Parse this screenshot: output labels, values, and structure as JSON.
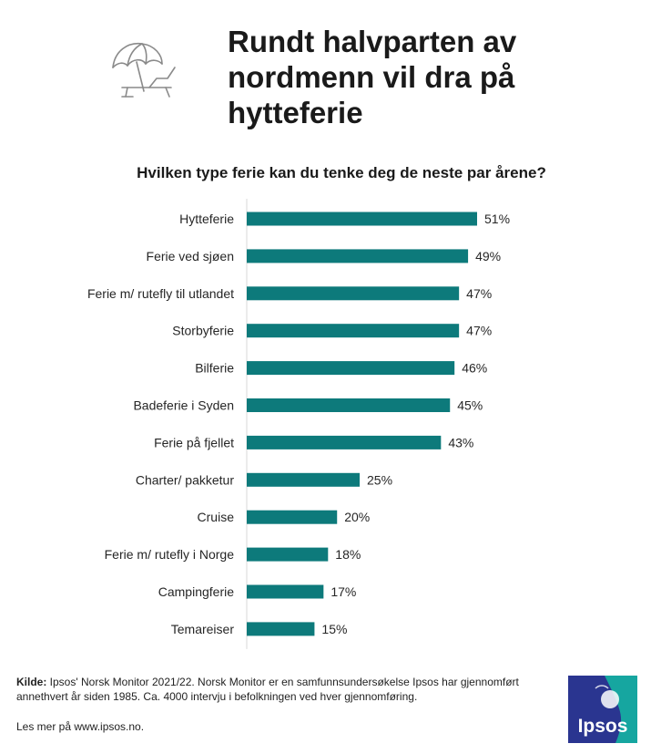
{
  "header": {
    "title": "Rundt halvparten av nordmenn vil dra på hytteferie",
    "icon": "beach-umbrella-lounger-icon"
  },
  "chart_data": {
    "type": "bar",
    "orientation": "horizontal",
    "title": "Hvilken type ferie kan du tenke deg de neste par årene?",
    "xlabel": "",
    "ylabel": "",
    "categories": [
      "Hytteferie",
      "Ferie ved sjøen",
      "Ferie m/ rutefly til utlandet",
      "Storbyferie",
      "Bilferie",
      "Badeferie i Syden",
      "Ferie på fjellet",
      "Charter/ pakketur",
      "Cruise",
      "Ferie m/ rutefly i Norge",
      "Campingferie",
      "Temareiser"
    ],
    "values": [
      51,
      49,
      47,
      47,
      46,
      45,
      43,
      25,
      20,
      18,
      17,
      15
    ],
    "value_labels": [
      "51%",
      "49%",
      "47%",
      "47%",
      "46%",
      "45%",
      "43%",
      "25%",
      "20%",
      "18%",
      "17%",
      "15%"
    ],
    "unit": "%",
    "xlim": [
      0,
      51
    ],
    "grid": false,
    "legend": "none",
    "bar_color": "#0d7a7b"
  },
  "footer": {
    "source_label": "Kilde:",
    "source_text": " Ipsos' Norsk Monitor 2021/22. Norsk Monitor er en samfunnsundersøkelse  Ipsos har gjennomført  annethvert  år siden 1985. Ca. 4000 intervju  i befolkningen ved hver gjennomføring.",
    "more_text": "Les mer på www.ipsos.no.",
    "logo_text": "Ipsos",
    "logo_colors": [
      "#2a3590",
      "#16a6a0"
    ]
  }
}
